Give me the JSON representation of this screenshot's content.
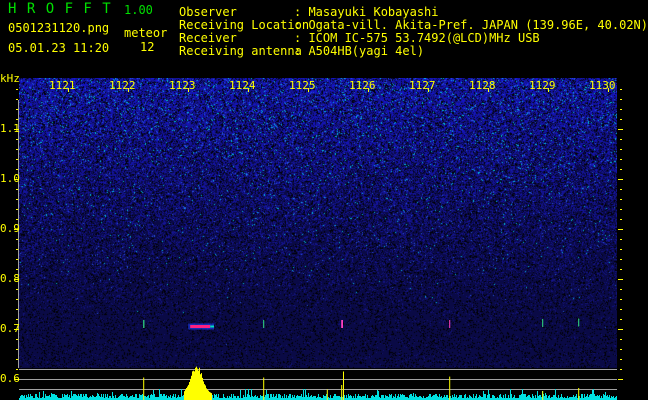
{
  "header": {
    "app_name": "H R O F F T",
    "version": "1.00",
    "filename": "0501231120.png",
    "datetime": "05.01.23 11:20",
    "meteor_label": "meteor",
    "meteor_count": "12",
    "info": [
      {
        "label": "Observer",
        "value": ": Masayuki Kobayashi"
      },
      {
        "label": "Receiving Location",
        "value": ": Ogata-vill. Akita-Pref. JAPAN (139.96E, 40.02N)"
      },
      {
        "label": "Receiver",
        "value": ": ICOM IC-575 53.7492(@LCD)MHz USB"
      },
      {
        "label": "Receiving antenna",
        "value": ": A504HB(yagi 4el)"
      }
    ]
  },
  "colors": {
    "text": "#ffff00",
    "title": "#00e000",
    "noise": "#1a1ae0",
    "power": "#00e0e0",
    "spike": "#ffff00",
    "grid": "#a0a0a0"
  },
  "chart_data": {
    "type": "heatmap",
    "ylabel": "kHz",
    "x_ticks": [
      "1121",
      "1122",
      "1123",
      "1124",
      "1125",
      "1126",
      "1127",
      "1128",
      "1129",
      "1130"
    ],
    "y_ticks": [
      "1.1",
      "1.0",
      "0.9",
      "0.8",
      "0.7",
      "0.6"
    ],
    "xlim": [
      1120.6,
      1130.3
    ],
    "ylim": [
      0.58,
      1.2
    ],
    "echoes": [
      {
        "t": 1123.17,
        "t_end": 1123.6,
        "f": 0.705,
        "strength": "strong"
      },
      {
        "t": 1122.42,
        "t_end": 1122.44,
        "f": 0.71,
        "strength": "weak"
      },
      {
        "t": 1124.42,
        "t_end": 1124.43,
        "f": 0.71,
        "strength": "weak"
      },
      {
        "t": 1125.72,
        "t_end": 1125.75,
        "f": 0.71,
        "strength": "medium"
      },
      {
        "t": 1127.52,
        "t_end": 1127.53,
        "f": 0.71,
        "strength": "medium"
      },
      {
        "t": 1129.07,
        "t_end": 1129.08,
        "f": 0.712,
        "strength": "weak"
      },
      {
        "t": 1129.67,
        "t_end": 1129.68,
        "f": 0.713,
        "strength": "weak"
      }
    ],
    "power_spikes": [
      {
        "t": 1122.42,
        "level": 0.75
      },
      {
        "t": 1124.42,
        "level": 0.75
      },
      {
        "t": 1125.48,
        "level": 0.35
      },
      {
        "t": 1125.72,
        "level": 0.5
      },
      {
        "t": 1125.75,
        "level": 0.95
      },
      {
        "t": 1127.52,
        "level": 0.78
      },
      {
        "t": 1129.07,
        "level": 0.3
      },
      {
        "t": 1129.67,
        "level": 0.4
      }
    ],
    "power_burst": {
      "t_start": 1123.1,
      "t_end": 1123.55,
      "level": 1.0
    }
  }
}
